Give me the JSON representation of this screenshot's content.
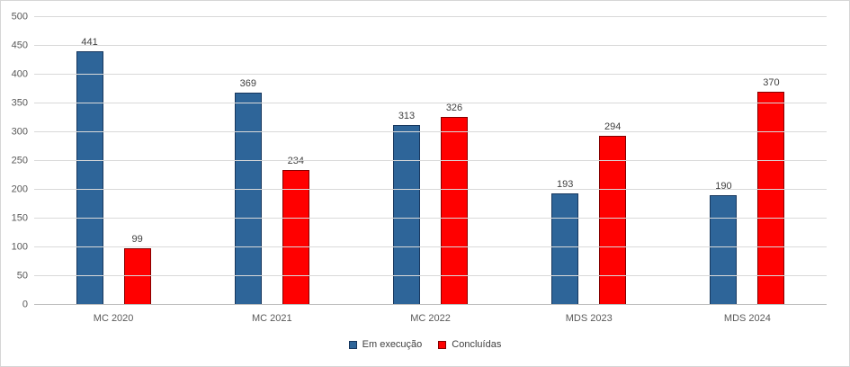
{
  "chart_data": {
    "type": "bar",
    "categories": [
      "MC 2020",
      "MC 2021",
      "MC 2022",
      "MDS 2023",
      "MDS 2024"
    ],
    "series": [
      {
        "name": "Em execução",
        "color": "#2E6599",
        "border_color": "#17375E",
        "values": [
          441,
          369,
          313,
          193,
          190
        ]
      },
      {
        "name": "Concluídas",
        "color": "#FF0000",
        "border_color": "#850000",
        "values": [
          99,
          234,
          326,
          294,
          370
        ]
      }
    ],
    "title": "",
    "xlabel": "",
    "ylabel": "",
    "ylim": [
      0,
      500
    ],
    "ytick_step": 50,
    "grid": true,
    "legend_position": "bottom"
  }
}
